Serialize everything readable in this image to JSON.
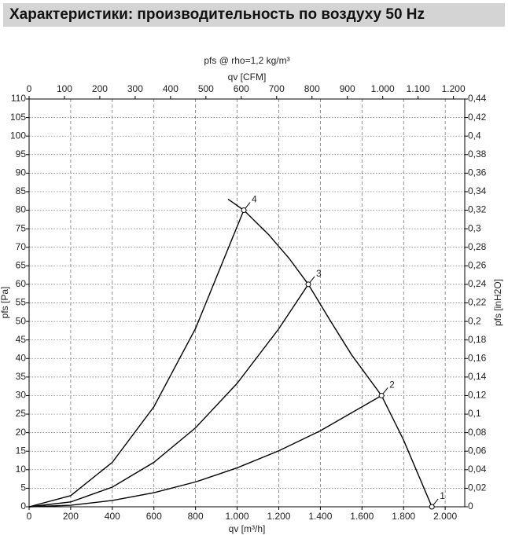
{
  "header": "Характеристики: производительность по воздуху 50 Hz",
  "chart_data": {
    "type": "line",
    "title": "pfs @ rho=1,2 kg/m³",
    "x_label": "qv [m³/h]",
    "x2_label": "qv [CFM]",
    "y_label": "pfs [Pa]",
    "y2_label": "pfs [inH2O]",
    "xlim": [
      0,
      2094
    ],
    "xticks": [
      0,
      200,
      400,
      600,
      800,
      {
        "value": 1000,
        "label": "1.000"
      },
      {
        "value": 1200,
        "label": "1.200"
      },
      {
        "value": 1400,
        "label": "1.400"
      },
      {
        "value": 1600,
        "label": "1.600"
      },
      {
        "value": 1800,
        "label": "1.800"
      },
      {
        "value": 2000,
        "label": "2.000"
      }
    ],
    "x2lim": [
      0,
      1232
    ],
    "x2ticks": [
      0,
      100,
      200,
      300,
      400,
      500,
      600,
      700,
      800,
      900,
      {
        "value": 1000,
        "label": "1.000"
      },
      {
        "value": 1100,
        "label": "1.100"
      },
      {
        "value": 1200,
        "label": "1.200"
      }
    ],
    "ylim": [
      0,
      110
    ],
    "yticks": [
      0,
      5,
      10,
      15,
      20,
      25,
      30,
      35,
      40,
      45,
      50,
      55,
      60,
      65,
      70,
      75,
      80,
      85,
      90,
      95,
      100,
      105,
      110
    ],
    "y2lim": [
      0,
      0.44
    ],
    "y2ticks": [
      0,
      {
        "value": 0.02,
        "label": "0,02"
      },
      {
        "value": 0.04,
        "label": "0,04"
      },
      {
        "value": 0.06,
        "label": "0,06"
      },
      {
        "value": 0.08,
        "label": "0,08"
      },
      {
        "value": 0.1,
        "label": "0,1"
      },
      {
        "value": 0.12,
        "label": "0,12"
      },
      {
        "value": 0.14,
        "label": "0,14"
      },
      {
        "value": 0.16,
        "label": "0,16"
      },
      {
        "value": 0.18,
        "label": "0,18"
      },
      {
        "value": 0.2,
        "label": "0,2"
      },
      {
        "value": 0.22,
        "label": "0,22"
      },
      {
        "value": 0.24,
        "label": "0,24"
      },
      {
        "value": 0.26,
        "label": "0,26"
      },
      {
        "value": 0.28,
        "label": "0,28"
      },
      {
        "value": 0.3,
        "label": "0,3"
      },
      {
        "value": 0.32,
        "label": "0,32"
      },
      {
        "value": 0.34,
        "label": "0,34"
      },
      {
        "value": 0.36,
        "label": "0,36"
      },
      {
        "value": 0.38,
        "label": "0,38"
      },
      {
        "value": 0.4,
        "label": "0,4"
      },
      {
        "value": 0.42,
        "label": "0,42"
      },
      {
        "value": 0.44,
        "label": "0,44"
      }
    ],
    "grid": true,
    "series": [
      {
        "color": "#000000",
        "x": [
          956,
          1032,
          1150,
          1250,
          1342,
          1450,
          1550,
          1694,
          1800,
          1936
        ],
        "values": [
          83,
          80,
          73.5,
          67,
          60,
          50,
          41,
          30,
          18,
          0
        ]
      },
      {
        "color": "#000000",
        "x": [
          0,
          200,
          400,
          600,
          800,
          1032
        ],
        "values": [
          0,
          3.0,
          12.0,
          27.0,
          48.1,
          80
        ]
      },
      {
        "color": "#000000",
        "x": [
          0,
          200,
          400,
          600,
          800,
          1000,
          1200,
          1342
        ],
        "values": [
          0,
          1.3,
          5.3,
          12.0,
          21.3,
          33.3,
          48.0,
          60
        ]
      },
      {
        "color": "#000000",
        "x": [
          0,
          200,
          400,
          600,
          800,
          1000,
          1200,
          1400,
          1694
        ],
        "values": [
          0,
          0.4,
          1.7,
          3.8,
          6.7,
          10.5,
          15.1,
          20.5,
          30
        ]
      }
    ],
    "operating_points": {
      "labels": [
        "1",
        "2",
        "3",
        "4"
      ],
      "x": [
        1936,
        1694,
        1342,
        1032
      ],
      "values": [
        0,
        30,
        60,
        80
      ]
    }
  }
}
